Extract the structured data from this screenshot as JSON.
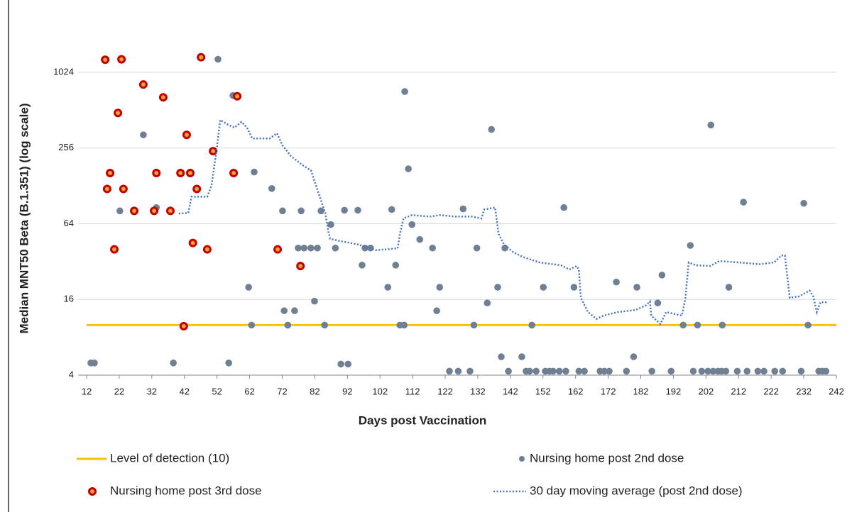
{
  "chart_data": {
    "type": "scatter",
    "x_label": "Days post Vaccination",
    "y_label": "Median MNT50 Beta (B.1.351) (log scale)",
    "log_y": true,
    "grid": true,
    "xlim": [
      12,
      242
    ],
    "xticks": [
      12,
      22,
      32,
      42,
      52,
      62,
      72,
      82,
      92,
      102,
      112,
      122,
      132,
      142,
      152,
      162,
      172,
      182,
      192,
      202,
      212,
      222,
      232,
      242
    ],
    "ylim": [
      4,
      2048
    ],
    "yticks": [
      4,
      16,
      64,
      256,
      1024
    ],
    "series": [
      {
        "name": "Level of detection (10)",
        "style": "line",
        "color": "#ffc000",
        "x": [
          12,
          242
        ],
        "values": [
          10,
          10
        ]
      },
      {
        "name": "Nursing home post 2nd dose",
        "style": "scatter",
        "color": "#6f7f94",
        "x": [
          13.3,
          14.4,
          22.2,
          29.4,
          33.4,
          38.6,
          52.3,
          55.6,
          56.9,
          63.4,
          61.7,
          62.6,
          68.8,
          72.1,
          72.6,
          75.8,
          73.7,
          77.8,
          76.9,
          78.7,
          80.8,
          82.8,
          81.9,
          83.9,
          85,
          86.9,
          88.3,
          90,
          92.2,
          91.1,
          95.2,
          96.5,
          97.4,
          99.1,
          104.4,
          105.6,
          106.8,
          108.1,
          109.4,
          109.6,
          110.7,
          111.8,
          114.2,
          118.1,
          119.4,
          120.3,
          123.3,
          126,
          127.5,
          129.6,
          130.8,
          131.7,
          134.9,
          136.2,
          138.1,
          139.2,
          140.3,
          141.4,
          145.5,
          146.8,
          147.9,
          148.6,
          149.9,
          152.1,
          152.7,
          154,
          155.1,
          157,
          159,
          158.4,
          161.5,
          163,
          164.7,
          169.5,
          170.8,
          172.3,
          174.5,
          177.6,
          179.8,
          180.8,
          185.4,
          187.2,
          188.5,
          191.3,
          195,
          197.2,
          198.1,
          199.4,
          200.7,
          202.6,
          204.2,
          205.7,
          206.8,
          203.5,
          207,
          208.1,
          209,
          211.6,
          213.5,
          214.6,
          217.9,
          219.8,
          223.1,
          225.5,
          231.2,
          232,
          233.3,
          236.6,
          237.7,
          238.8
        ],
        "values": [
          5,
          5,
          81,
          326,
          86,
          5,
          1300,
          5,
          670,
          165,
          20,
          10,
          122,
          81,
          13,
          13,
          10,
          81,
          41,
          41,
          41,
          41,
          15.5,
          81,
          10,
          63,
          41,
          4.9,
          4.9,
          82,
          82,
          30,
          41,
          41,
          20,
          83,
          30,
          10,
          10,
          720,
          175,
          63,
          48,
          41,
          13,
          20,
          4.3,
          4.3,
          84,
          4.3,
          10,
          41,
          15,
          360,
          20,
          5.6,
          41,
          4.3,
          5.6,
          4.3,
          4.3,
          10,
          4.3,
          20,
          4.3,
          4.3,
          4.3,
          4.3,
          4.3,
          86,
          20,
          4.3,
          4.3,
          4.3,
          4.3,
          4.3,
          22,
          4.3,
          5.6,
          20,
          4.3,
          15,
          25,
          4.3,
          10,
          43,
          4.3,
          10,
          4.3,
          4.3,
          4.3,
          4.3,
          4.3,
          390,
          10,
          4.3,
          20,
          4.3,
          95,
          4.3,
          4.3,
          4.3,
          4.3,
          4.3,
          4.3,
          93,
          10,
          4.3,
          4.3,
          4.3
        ]
      },
      {
        "name": "Nursing home post 3rd dose",
        "style": "scatter",
        "color": "#c00000",
        "x": [
          17.7,
          22.7,
          21.6,
          19.2,
          18.3,
          23.3,
          20.5,
          26.6,
          29.4,
          35.5,
          33.4,
          32.7,
          37.7,
          40.8,
          43.8,
          42.7,
          47.1,
          45.8,
          50.8,
          44.6,
          41.8,
          49,
          58.2,
          57.1,
          70.6,
          77.6
        ],
        "values": [
          1290,
          1300,
          487,
          162,
          121,
          121,
          40,
          81,
          819,
          648,
          162,
          81,
          81,
          162,
          162,
          326,
          1350,
          121,
          242,
          45,
          9.8,
          40,
          660,
          162,
          40,
          29.5
        ]
      },
      {
        "name": "30 day moving average (post 2nd dose)",
        "style": "dotted",
        "color": "#4472c4",
        "x": [
          40.3,
          43.2,
          44.2,
          49,
          50.3,
          51.9,
          53,
          55.1,
          57.3,
          59.5,
          61.2,
          62.8,
          68.2,
          70.4,
          72.1,
          74.7,
          78,
          80.8,
          83,
          85.2,
          86.1,
          86.7,
          90,
          95.4,
          100.9,
          107.4,
          108.1,
          109.2,
          111.8,
          117.2,
          120.5,
          124.9,
          130.3,
          133.1,
          134,
          137.3,
          138.4,
          140.1,
          142.7,
          145.6,
          151,
          157.5,
          160.1,
          162.3,
          163,
          163.6,
          165.8,
          168.4,
          170.6,
          175,
          180.4,
          183.7,
          184.8,
          185.2,
          188,
          189.8,
          194.6,
          195.7,
          196.7,
          198.9,
          203.3,
          206.1,
          212,
          218.5,
          222.9,
          225.1,
          226.2,
          227.7,
          230.5,
          233.8,
          234.9,
          236,
          237.1,
          239.2
        ],
        "values": [
          77,
          78,
          105,
          105,
          128,
          251,
          428,
          396,
          372,
          413,
          372,
          305,
          305,
          335,
          268,
          221,
          189,
          170,
          115,
          78,
          56.5,
          48.5,
          46.5,
          43.7,
          39.4,
          40.8,
          53,
          70.5,
          75,
          73,
          75,
          73,
          73,
          70.5,
          83,
          86,
          53,
          43.7,
          38.3,
          35,
          31.5,
          29.9,
          27.7,
          29.5,
          27.7,
          16.5,
          12.7,
          11.2,
          11.9,
          12.7,
          13.2,
          14.4,
          15.4,
          11.9,
          10.2,
          12.7,
          11.9,
          16.5,
          31.5,
          29.9,
          29.5,
          32.3,
          31.5,
          30.5,
          31.5,
          35.8,
          35.8,
          16.5,
          16.9,
          18.8,
          16.9,
          12.7,
          15.2,
          15.2
        ]
      }
    ]
  }
}
